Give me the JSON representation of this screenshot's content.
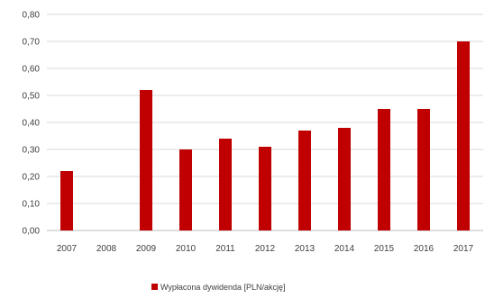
{
  "chart_data": {
    "type": "bar",
    "categories": [
      "2007",
      "2008",
      "2009",
      "2010",
      "2011",
      "2012",
      "2013",
      "2014",
      "2015",
      "2016",
      "2017"
    ],
    "series": [
      {
        "name": "Wypłacona dywidenda [PLN/akcję]",
        "values": [
          0.22,
          0.0,
          0.52,
          0.3,
          0.34,
          0.31,
          0.37,
          0.38,
          0.45,
          0.45,
          0.7
        ],
        "color": "#c00000"
      }
    ],
    "ylim": [
      0,
      0.8
    ],
    "yticks": [
      "0,00",
      "0,10",
      "0,20",
      "0,30",
      "0,40",
      "0,50",
      "0,60",
      "0,70",
      "0,80"
    ],
    "grid": true,
    "legend_position": "bottom"
  }
}
